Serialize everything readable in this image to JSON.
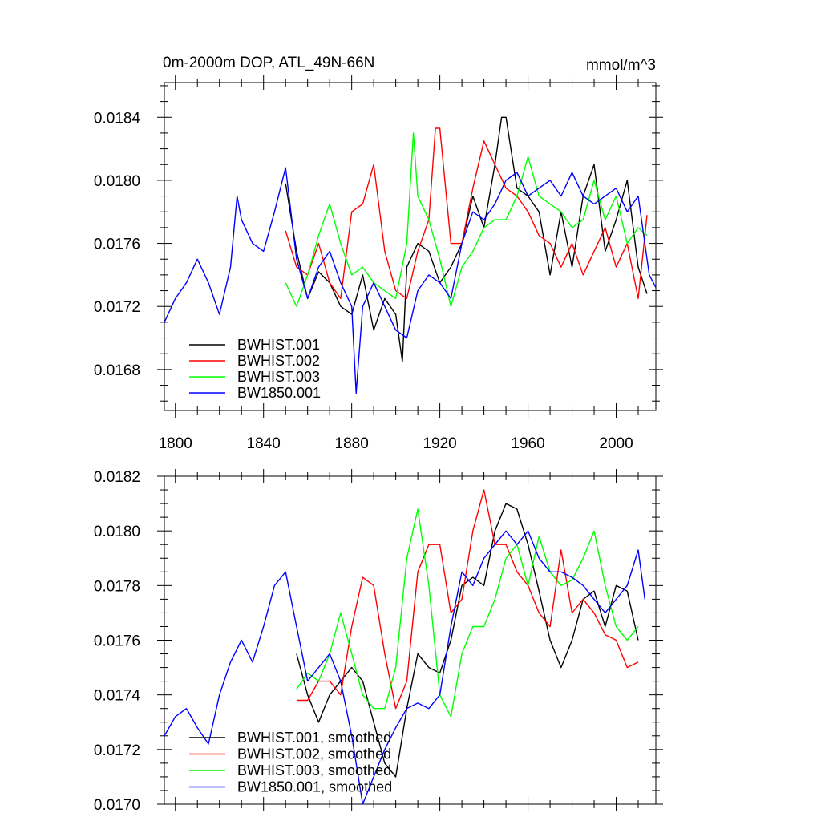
{
  "chart_data": [
    {
      "type": "line",
      "title": "0m-2000m DOP, ATL_49N-66N",
      "units": "mmol/m^3",
      "xlabel": "",
      "ylabel": "",
      "xlim": [
        1795,
        2018
      ],
      "ylim": [
        0.01654,
        0.01862
      ],
      "xticks": [
        1800,
        1840,
        1880,
        1920,
        1960,
        2000
      ],
      "xtick_labels": [
        "1800",
        "1840",
        "1880",
        "1920",
        "1960",
        "2000"
      ],
      "yticks": [
        0.0168,
        0.0172,
        0.0176,
        0.018,
        0.0184
      ],
      "ytick_labels": [
        "0.0168",
        "0.0172",
        "0.0176",
        "0.0180",
        "0.0184"
      ],
      "grid": false,
      "legend_position": "bottom-left",
      "series": [
        {
          "name": "BWHIST.001",
          "color": "#000000",
          "x": [
            1850,
            1855,
            1860,
            1865,
            1870,
            1875,
            1880,
            1885,
            1890,
            1895,
            1900,
            1903,
            1905,
            1910,
            1915,
            1920,
            1925,
            1930,
            1935,
            1940,
            1945,
            1948,
            1950,
            1955,
            1960,
            1965,
            1970,
            1975,
            1980,
            1985,
            1990,
            1995,
            2000,
            2005,
            2010,
            2014
          ],
          "y": [
            0.01798,
            0.01755,
            0.01725,
            0.01742,
            0.01735,
            0.0172,
            0.01715,
            0.0174,
            0.01705,
            0.01725,
            0.01715,
            0.01685,
            0.01745,
            0.0176,
            0.01755,
            0.01735,
            0.01745,
            0.0176,
            0.0179,
            0.0177,
            0.0181,
            0.0184,
            0.0184,
            0.01795,
            0.0179,
            0.0178,
            0.0174,
            0.0178,
            0.01745,
            0.0179,
            0.0181,
            0.01755,
            0.01775,
            0.018,
            0.01745,
            0.01728
          ]
        },
        {
          "name": "BWHIST.002",
          "color": "#ff0000",
          "x": [
            1850,
            1855,
            1860,
            1865,
            1870,
            1875,
            1880,
            1885,
            1890,
            1895,
            1900,
            1905,
            1910,
            1915,
            1918,
            1920,
            1925,
            1930,
            1935,
            1940,
            1945,
            1950,
            1955,
            1960,
            1965,
            1970,
            1975,
            1980,
            1985,
            1990,
            1995,
            2000,
            2005,
            2010,
            2014
          ],
          "y": [
            0.01768,
            0.01745,
            0.0174,
            0.0176,
            0.01735,
            0.01725,
            0.0178,
            0.01785,
            0.0181,
            0.01755,
            0.0173,
            0.01725,
            0.01755,
            0.01775,
            0.01833,
            0.01833,
            0.0176,
            0.0176,
            0.01795,
            0.01825,
            0.0181,
            0.01795,
            0.0179,
            0.0178,
            0.01765,
            0.0176,
            0.01745,
            0.0176,
            0.0174,
            0.01755,
            0.0177,
            0.01745,
            0.0176,
            0.01725,
            0.01778
          ]
        },
        {
          "name": "BWHIST.003",
          "color": "#00ff00",
          "x": [
            1850,
            1855,
            1860,
            1865,
            1870,
            1875,
            1880,
            1885,
            1890,
            1895,
            1900,
            1905,
            1908,
            1910,
            1915,
            1920,
            1925,
            1930,
            1935,
            1940,
            1945,
            1950,
            1955,
            1960,
            1965,
            1970,
            1975,
            1980,
            1985,
            1990,
            1995,
            2000,
            2005,
            2010,
            2014
          ],
          "y": [
            0.01735,
            0.0172,
            0.0174,
            0.01765,
            0.01785,
            0.0176,
            0.0174,
            0.01745,
            0.01735,
            0.0173,
            0.01725,
            0.0176,
            0.0183,
            0.0179,
            0.01775,
            0.0175,
            0.0172,
            0.01745,
            0.01755,
            0.0177,
            0.01775,
            0.01775,
            0.0179,
            0.01815,
            0.0179,
            0.01785,
            0.0178,
            0.0177,
            0.01775,
            0.018,
            0.01775,
            0.0179,
            0.0176,
            0.0177,
            0.01765
          ]
        },
        {
          "name": "BW1850.001",
          "color": "#0000ff",
          "x": [
            1795,
            1800,
            1805,
            1810,
            1815,
            1820,
            1825,
            1828,
            1830,
            1835,
            1840,
            1845,
            1850,
            1855,
            1860,
            1865,
            1870,
            1875,
            1880,
            1882,
            1885,
            1890,
            1895,
            1900,
            1905,
            1910,
            1915,
            1920,
            1925,
            1930,
            1935,
            1940,
            1945,
            1950,
            1955,
            1960,
            1965,
            1970,
            1975,
            1980,
            1985,
            1990,
            1995,
            2000,
            2005,
            2010,
            2015,
            2018
          ],
          "y": [
            0.0171,
            0.01725,
            0.01735,
            0.0175,
            0.01735,
            0.01715,
            0.01745,
            0.0179,
            0.01775,
            0.0176,
            0.01755,
            0.0178,
            0.01808,
            0.0175,
            0.01725,
            0.01745,
            0.01755,
            0.01735,
            0.0172,
            0.01665,
            0.0172,
            0.01735,
            0.0172,
            0.01705,
            0.017,
            0.0173,
            0.0174,
            0.01735,
            0.01725,
            0.0176,
            0.0178,
            0.01775,
            0.01785,
            0.018,
            0.01805,
            0.0179,
            0.01795,
            0.018,
            0.0179,
            0.01805,
            0.0179,
            0.01785,
            0.0179,
            0.01795,
            0.0178,
            0.0179,
            0.0174,
            0.01732
          ]
        }
      ]
    },
    {
      "type": "line",
      "title": "",
      "xlabel": "",
      "ylabel": "",
      "xlim": [
        1795,
        2018
      ],
      "ylim": [
        0.017,
        0.0182
      ],
      "xticks": [
        1800,
        1840,
        1880,
        1920,
        1960,
        2000
      ],
      "yticks": [
        0.017,
        0.0172,
        0.0174,
        0.0176,
        0.0178,
        0.018,
        0.0182
      ],
      "ytick_labels": [
        "0.0170",
        "0.0172",
        "0.0174",
        "0.0176",
        "0.0178",
        "0.0180",
        "0.0182"
      ],
      "grid": false,
      "legend_position": "bottom-left",
      "series": [
        {
          "name": "BWHIST.001, smoothed",
          "color": "#000000",
          "x": [
            1855,
            1860,
            1865,
            1870,
            1875,
            1880,
            1885,
            1890,
            1895,
            1900,
            1905,
            1910,
            1915,
            1920,
            1925,
            1930,
            1935,
            1940,
            1945,
            1950,
            1955,
            1960,
            1965,
            1970,
            1975,
            1980,
            1985,
            1990,
            1995,
            2000,
            2005,
            2010
          ],
          "y": [
            0.01755,
            0.0174,
            0.0173,
            0.0174,
            0.01745,
            0.0175,
            0.01745,
            0.0173,
            0.01715,
            0.0171,
            0.01735,
            0.01755,
            0.0175,
            0.01748,
            0.0176,
            0.0178,
            0.01783,
            0.0178,
            0.018,
            0.0181,
            0.01808,
            0.01795,
            0.01778,
            0.0176,
            0.0175,
            0.0176,
            0.01775,
            0.01778,
            0.01765,
            0.0178,
            0.01778,
            0.0176
          ]
        },
        {
          "name": "BWHIST.002, smoothed",
          "color": "#ff0000",
          "x": [
            1855,
            1860,
            1865,
            1870,
            1875,
            1880,
            1885,
            1890,
            1895,
            1900,
            1905,
            1910,
            1915,
            1920,
            1925,
            1930,
            1935,
            1940,
            1945,
            1950,
            1955,
            1960,
            1965,
            1970,
            1975,
            1980,
            1985,
            1990,
            1995,
            2000,
            2005,
            2010
          ],
          "y": [
            0.01738,
            0.01738,
            0.01745,
            0.01745,
            0.0174,
            0.01765,
            0.01783,
            0.0178,
            0.01755,
            0.01735,
            0.01745,
            0.01785,
            0.01795,
            0.01795,
            0.0177,
            0.01775,
            0.018,
            0.01815,
            0.01795,
            0.01795,
            0.01785,
            0.0178,
            0.0177,
            0.01765,
            0.01793,
            0.0177,
            0.01775,
            0.0177,
            0.01762,
            0.0176,
            0.0175,
            0.01752
          ]
        },
        {
          "name": "BWHIST.003, smoothed",
          "color": "#00ff00",
          "x": [
            1855,
            1860,
            1865,
            1870,
            1875,
            1880,
            1885,
            1890,
            1895,
            1900,
            1905,
            1910,
            1915,
            1920,
            1925,
            1930,
            1935,
            1940,
            1945,
            1950,
            1955,
            1960,
            1965,
            1970,
            1975,
            1980,
            1985,
            1990,
            1995,
            2000,
            2005,
            2010
          ],
          "y": [
            0.01742,
            0.01748,
            0.01745,
            0.01755,
            0.0177,
            0.01755,
            0.0174,
            0.01735,
            0.01735,
            0.0175,
            0.0179,
            0.01808,
            0.0178,
            0.0174,
            0.01732,
            0.01755,
            0.01765,
            0.01765,
            0.01775,
            0.0179,
            0.01795,
            0.0178,
            0.01798,
            0.01785,
            0.0178,
            0.01782,
            0.0179,
            0.018,
            0.0178,
            0.01765,
            0.0176,
            0.01765
          ]
        },
        {
          "name": "BW1850.001, smoothed",
          "color": "#0000ff",
          "x": [
            1795,
            1800,
            1805,
            1810,
            1815,
            1820,
            1825,
            1830,
            1835,
            1840,
            1845,
            1850,
            1855,
            1860,
            1865,
            1870,
            1875,
            1880,
            1885,
            1890,
            1895,
            1900,
            1905,
            1910,
            1915,
            1920,
            1925,
            1930,
            1935,
            1940,
            1945,
            1950,
            1955,
            1960,
            1965,
            1970,
            1975,
            1980,
            1985,
            1990,
            1995,
            2000,
            2005,
            2010,
            2013
          ],
          "y": [
            0.01725,
            0.01732,
            0.01735,
            0.01728,
            0.01722,
            0.0174,
            0.01752,
            0.0176,
            0.01752,
            0.01765,
            0.0178,
            0.01785,
            0.01765,
            0.01745,
            0.0175,
            0.01755,
            0.01745,
            0.01725,
            0.017,
            0.0171,
            0.0172,
            0.01728,
            0.01735,
            0.01737,
            0.01735,
            0.0174,
            0.01765,
            0.01785,
            0.0178,
            0.0179,
            0.01795,
            0.018,
            0.01795,
            0.018,
            0.0179,
            0.01785,
            0.01785,
            0.01783,
            0.0178,
            0.01775,
            0.0177,
            0.01775,
            0.0178,
            0.01793,
            0.01775
          ]
        }
      ]
    }
  ]
}
